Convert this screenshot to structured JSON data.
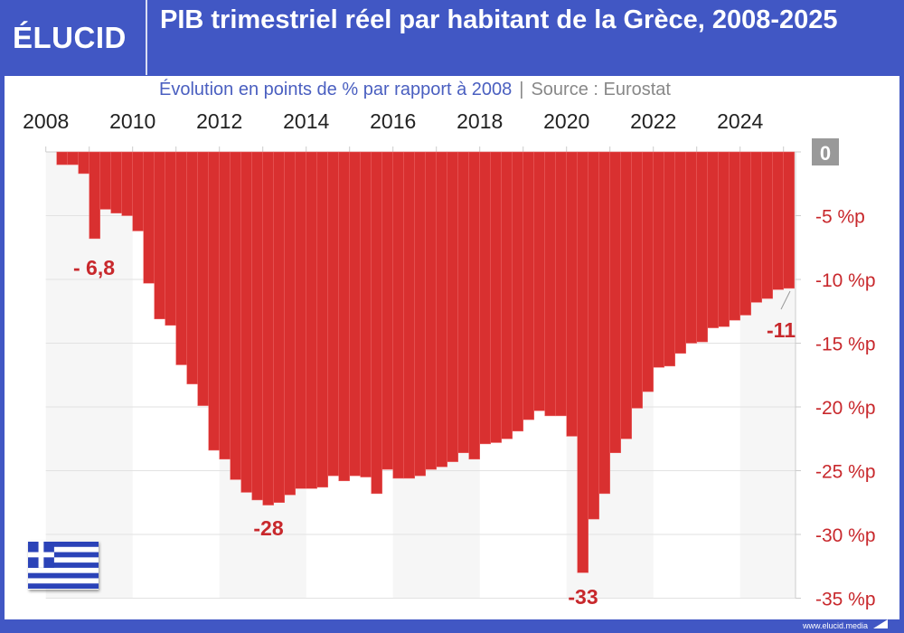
{
  "header": {
    "logo": "ÉLUCID",
    "title": "PIB trimestriel réel par habitant de la Grèce, 2008-2025",
    "subtitle": "Évolution en points de % par rapport à 2008",
    "separator": "|",
    "source": "Source : Eurostat"
  },
  "footer": {
    "url": "www.elucid.media"
  },
  "colors": {
    "brand": "#4157c4",
    "bar": "#d93030",
    "label": "#c8282c"
  },
  "icons": {
    "flag": "greece-flag-icon"
  },
  "chart_data": {
    "type": "bar",
    "title": "PIB trimestriel réel par habitant de la Grèce, 2008-2025",
    "subtitle": "Évolution en points de % par rapport à 2008",
    "frequency": "quarterly",
    "start_period": "2008-Q1",
    "x_tick_labels": [
      "2008",
      "2010",
      "2012",
      "2014",
      "2016",
      "2018",
      "2020",
      "2022",
      "2024"
    ],
    "y_tick_labels": [
      "0",
      "-5 %p",
      "-10 %p",
      "-15 %p",
      "-20 %p",
      "-25 %p",
      "-30 %p",
      "-35 %p"
    ],
    "ylim": [
      -35,
      0
    ],
    "y_axis_position": "right",
    "grid": true,
    "categories": [
      "2008-Q1",
      "2008-Q2",
      "2008-Q3",
      "2008-Q4",
      "2009-Q1",
      "2009-Q2",
      "2009-Q3",
      "2009-Q4",
      "2010-Q1",
      "2010-Q2",
      "2010-Q3",
      "2010-Q4",
      "2011-Q1",
      "2011-Q2",
      "2011-Q3",
      "2011-Q4",
      "2012-Q1",
      "2012-Q2",
      "2012-Q3",
      "2012-Q4",
      "2013-Q1",
      "2013-Q2",
      "2013-Q3",
      "2013-Q4",
      "2014-Q1",
      "2014-Q2",
      "2014-Q3",
      "2014-Q4",
      "2015-Q1",
      "2015-Q2",
      "2015-Q3",
      "2015-Q4",
      "2016-Q1",
      "2016-Q2",
      "2016-Q3",
      "2016-Q4",
      "2017-Q1",
      "2017-Q2",
      "2017-Q3",
      "2017-Q4",
      "2018-Q1",
      "2018-Q2",
      "2018-Q3",
      "2018-Q4",
      "2019-Q1",
      "2019-Q2",
      "2019-Q3",
      "2019-Q4",
      "2020-Q1",
      "2020-Q2",
      "2020-Q3",
      "2020-Q4",
      "2021-Q1",
      "2021-Q2",
      "2021-Q3",
      "2021-Q4",
      "2022-Q1",
      "2022-Q2",
      "2022-Q3",
      "2022-Q4",
      "2023-Q1",
      "2023-Q2",
      "2023-Q3",
      "2023-Q4",
      "2024-Q1",
      "2024-Q2",
      "2024-Q3",
      "2024-Q4",
      "2025-Q1"
    ],
    "values": [
      0,
      -1.0,
      -1.0,
      -1.7,
      -6.8,
      -4.5,
      -4.8,
      -5.0,
      -6.2,
      -10.3,
      -13.1,
      -13.6,
      -16.7,
      -18.2,
      -19.9,
      -23.4,
      -24.1,
      -25.7,
      -26.7,
      -27.3,
      -27.7,
      -27.5,
      -26.9,
      -26.4,
      -26.4,
      -26.3,
      -25.4,
      -25.8,
      -25.4,
      -25.5,
      -26.8,
      -24.9,
      -25.6,
      -25.6,
      -25.4,
      -24.9,
      -24.7,
      -24.3,
      -23.6,
      -24.1,
      -22.9,
      -22.8,
      -22.5,
      -21.9,
      -21.0,
      -20.3,
      -20.7,
      -20.7,
      -22.3,
      -33.0,
      -28.8,
      -26.8,
      -23.6,
      -22.5,
      -20.1,
      -18.8,
      -16.9,
      -16.8,
      -15.8,
      -15.0,
      -14.9,
      -13.8,
      -13.7,
      -13.2,
      -12.8,
      -11.8,
      -11.5,
      -10.8,
      -10.7
    ],
    "annotations": [
      {
        "period": "2009-Q1",
        "text": "- 6,8"
      },
      {
        "period": "2013-Q1",
        "text": "-28"
      },
      {
        "period": "2020-Q2",
        "text": "-33"
      },
      {
        "period": "2025-Q1",
        "text": "-11"
      }
    ]
  }
}
